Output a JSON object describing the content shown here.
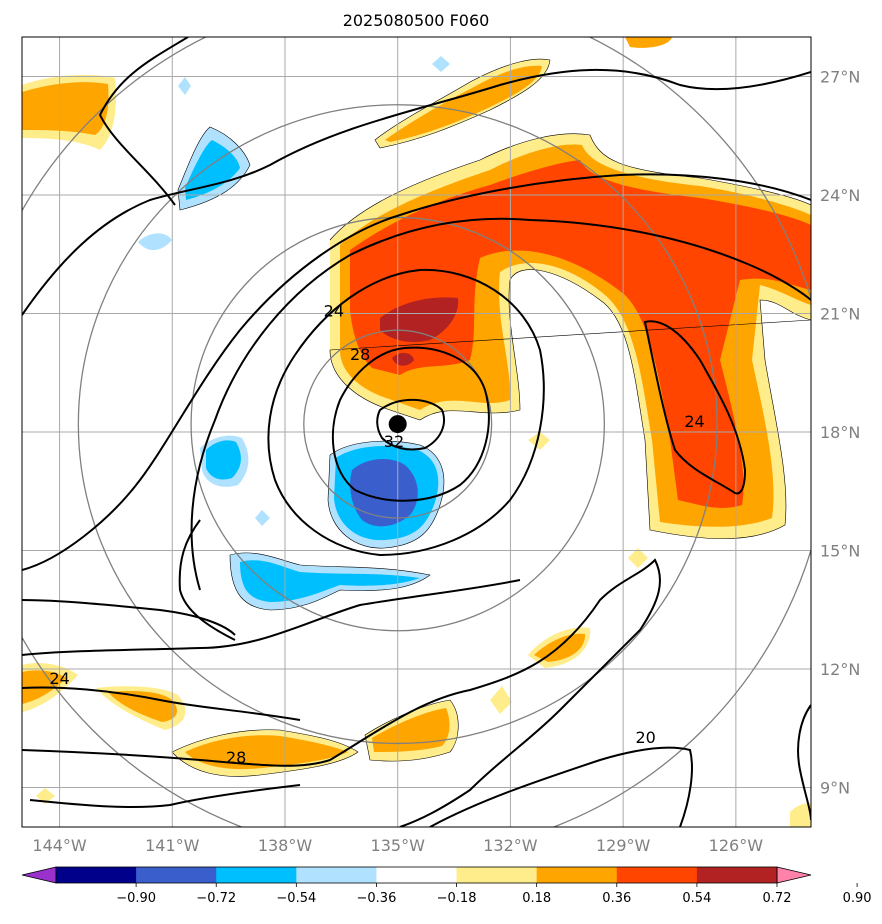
{
  "title": "2025080500 F060",
  "map": {
    "lon_range": [
      -145.0,
      -124.0
    ],
    "lat_range": [
      8.0,
      28.0
    ],
    "meridians": [
      {
        "lon": -144,
        "label": "144°W"
      },
      {
        "lon": -141,
        "label": "141°W"
      },
      {
        "lon": -138,
        "label": "138°W"
      },
      {
        "lon": -135,
        "label": "135°W"
      },
      {
        "lon": -132,
        "label": "132°W"
      },
      {
        "lon": -129,
        "label": "129°W"
      },
      {
        "lon": -126,
        "label": "126°W"
      }
    ],
    "parallels": [
      {
        "lat": 9,
        "label": "9°N"
      },
      {
        "lat": 12,
        "label": "12°N"
      },
      {
        "lat": 15,
        "label": "15°N"
      },
      {
        "lat": 18,
        "label": "18°N"
      },
      {
        "lat": 21,
        "label": "21°N"
      },
      {
        "lat": 24,
        "label": "24°N"
      },
      {
        "lat": 27,
        "label": "27°N"
      }
    ],
    "storm_center": {
      "lon": -135.0,
      "lat": 18.2
    },
    "range_rings_deg": [
      2.5,
      5.5,
      8.5,
      11.5
    ],
    "contour_labels": [
      {
        "text": "32",
        "lon": -135.1,
        "lat": 17.7
      },
      {
        "text": "28",
        "lon": -136.0,
        "lat": 19.9
      },
      {
        "text": "24",
        "lon": -136.7,
        "lat": 21.0
      },
      {
        "text": "24",
        "lon": -127.1,
        "lat": 18.2
      },
      {
        "text": "24",
        "lon": -144.0,
        "lat": 11.7
      },
      {
        "text": "28",
        "lon": -139.3,
        "lat": 9.7
      },
      {
        "text": "20",
        "lon": -128.4,
        "lat": 10.2
      }
    ]
  },
  "colorbar": {
    "levels": [
      "−0.90",
      "−0.72",
      "−0.54",
      "−0.36",
      "−0.18",
      "0.18",
      "0.36",
      "0.54",
      "0.72",
      "0.90"
    ],
    "colors": [
      "#9932cc",
      "#00008b",
      "#3a5fcd",
      "#00bfff",
      "#b0e2ff",
      "#ffffff",
      "#ffec8b",
      "#ffa500",
      "#ff4500",
      "#b22222",
      "#ff82ab"
    ]
  }
}
